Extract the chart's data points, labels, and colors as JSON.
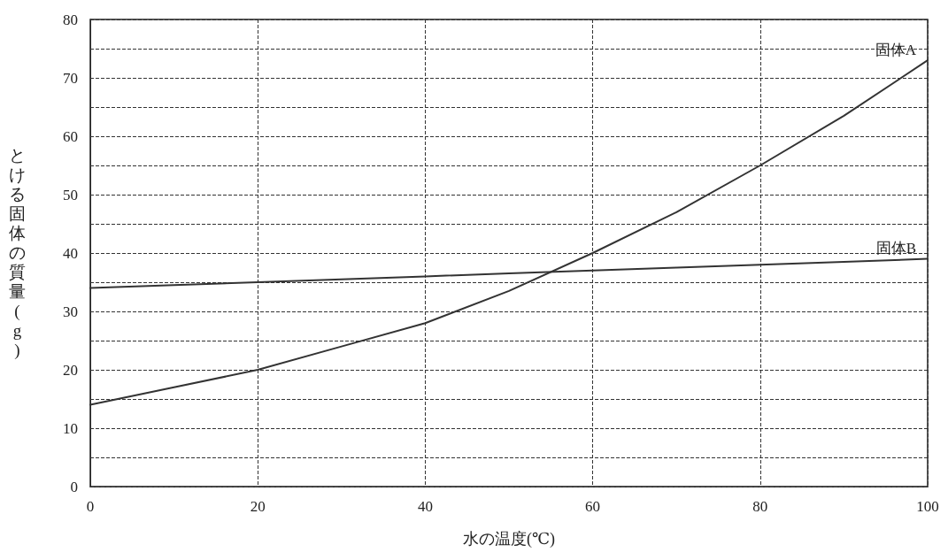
{
  "chart_data": {
    "type": "line",
    "xlabel": "水の温度(℃)",
    "ylabel": "とける固体の質量(g)",
    "x": [
      0,
      10,
      20,
      30,
      40,
      50,
      60,
      70,
      80,
      90,
      100
    ],
    "series": [
      {
        "name": "固体A",
        "color": "#333333",
        "values": [
          14,
          17,
          20,
          24,
          28,
          33.5,
          40,
          47,
          55,
          63.5,
          73
        ]
      },
      {
        "name": "固体B",
        "color": "#333333",
        "values": [
          34,
          34.5,
          35,
          35.5,
          36,
          36.5,
          37,
          37.5,
          38,
          38.5,
          39
        ]
      }
    ],
    "xlim": [
      0,
      100
    ],
    "xticks": [
      0,
      20,
      40,
      60,
      80,
      100
    ],
    "ylim": [
      0,
      80
    ],
    "yticks": [
      0,
      {
        "value": 5,
        "label": null
      },
      10,
      {
        "value": 15,
        "label": null
      },
      20,
      {
        "value": 25,
        "label": null
      },
      30,
      {
        "value": 35,
        "label": null
      },
      40,
      {
        "value": 45,
        "label": null
      },
      50,
      {
        "value": 55,
        "label": null
      },
      60,
      {
        "value": 65,
        "label": null
      },
      70,
      {
        "value": 75,
        "label": null
      },
      80
    ],
    "grid": true,
    "legend": false,
    "marker": "none",
    "line_style": "solid"
  }
}
